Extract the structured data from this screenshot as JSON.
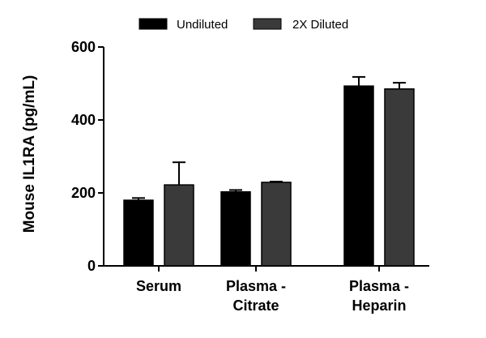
{
  "chart_data": {
    "type": "bar",
    "title": "",
    "xlabel": "",
    "ylabel": "Mouse IL1RA (pg/mL)",
    "ylim": [
      0,
      600
    ],
    "yticks": [
      0,
      200,
      400,
      600
    ],
    "categories": [
      [
        "Serum"
      ],
      [
        "Plasma -",
        "Citrate"
      ],
      [
        "Plasma -",
        "Heparin"
      ]
    ],
    "series": [
      {
        "name": "Undiluted",
        "color": "#000000",
        "values": [
          180,
          203,
          493
        ],
        "errors": [
          6,
          5,
          25
        ]
      },
      {
        "name": "2X Diluted",
        "color": "#3a3a3a",
        "values": [
          222,
          229,
          485
        ],
        "errors": [
          62,
          2,
          17
        ]
      }
    ],
    "legend_position": "top"
  }
}
